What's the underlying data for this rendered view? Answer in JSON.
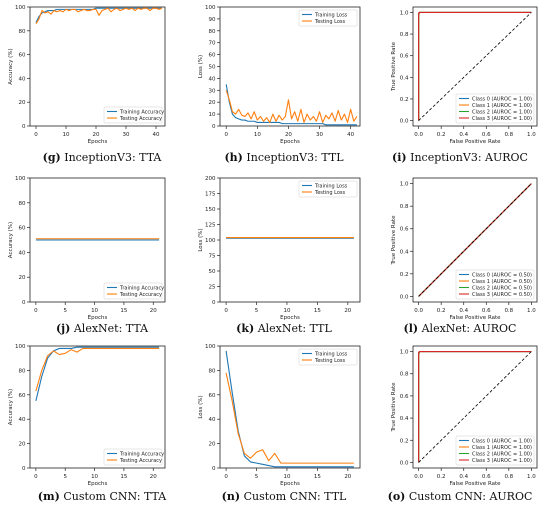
{
  "chart_data": [
    {
      "type": "line",
      "subfigure": "g",
      "model": "InceptionV3",
      "metric": "TTA",
      "xlabel": "Epochs",
      "ylabel": "Accuracy (%)",
      "xlim": [
        -2,
        43
      ],
      "ylim": [
        0,
        100
      ],
      "xticks": [
        0,
        10,
        20,
        30,
        40
      ],
      "yticks": [
        0,
        20,
        40,
        60,
        80,
        100
      ],
      "legend": "bottom-right",
      "series": [
        {
          "name": "Training Accuracy",
          "color": "#1f77b4",
          "x": [
            0,
            1,
            2,
            3,
            4,
            5,
            6,
            7,
            8,
            9,
            10,
            11,
            12,
            13,
            14,
            15,
            16,
            17,
            18,
            19,
            20,
            21,
            22,
            23,
            24,
            25,
            26,
            27,
            28,
            29,
            30,
            31,
            32,
            33,
            34,
            35,
            36,
            37,
            38,
            39,
            40,
            41,
            42
          ],
          "values": [
            87,
            92,
            95,
            96,
            97,
            97,
            97,
            98,
            98,
            98,
            98,
            98,
            98,
            98,
            98,
            98,
            98,
            98,
            98,
            98,
            99,
            99,
            99,
            99,
            99,
            99,
            99,
            99,
            99,
            99,
            99,
            99,
            99,
            99,
            99,
            99,
            99,
            99,
            99,
            99,
            99,
            99,
            99
          ]
        },
        {
          "name": "Testing Accuracy",
          "color": "#ff7f0e",
          "x": [
            0,
            1,
            2,
            3,
            4,
            5,
            6,
            7,
            8,
            9,
            10,
            11,
            12,
            13,
            14,
            15,
            16,
            17,
            18,
            19,
            20,
            21,
            22,
            23,
            24,
            25,
            26,
            27,
            28,
            29,
            30,
            31,
            32,
            33,
            34,
            35,
            36,
            37,
            38,
            39,
            40,
            41,
            42
          ],
          "values": [
            86,
            90,
            97,
            95,
            96,
            94,
            97,
            96,
            97,
            96,
            98,
            97,
            98,
            98,
            96,
            97,
            98,
            97,
            97,
            98,
            98,
            93,
            97,
            98,
            99,
            96,
            98,
            99,
            97,
            98,
            99,
            98,
            99,
            97,
            99,
            98,
            99,
            99,
            97,
            99,
            99,
            98,
            99
          ]
        }
      ]
    },
    {
      "type": "line",
      "subfigure": "h",
      "model": "InceptionV3",
      "metric": "TTL",
      "xlabel": "Epochs",
      "ylabel": "Loss (%)",
      "xlim": [
        -2,
        43
      ],
      "ylim": [
        0,
        100
      ],
      "xticks": [
        0,
        10,
        20,
        30,
        40
      ],
      "yticks": [
        0,
        10,
        20,
        30,
        40,
        50,
        60,
        70,
        80,
        90,
        100
      ],
      "legend": "top-right",
      "series": [
        {
          "name": "Training Loss",
          "color": "#1f77b4",
          "x": [
            0,
            1,
            2,
            3,
            4,
            5,
            6,
            7,
            8,
            9,
            10,
            11,
            12,
            13,
            14,
            15,
            16,
            17,
            18,
            19,
            20,
            21,
            22,
            23,
            24,
            25,
            26,
            27,
            28,
            29,
            30,
            31,
            32,
            33,
            34,
            35,
            36,
            37,
            38,
            39,
            40,
            41,
            42
          ],
          "values": [
            35,
            20,
            10,
            7,
            6,
            5,
            5,
            4,
            4,
            4,
            3,
            3,
            3,
            3,
            3,
            3,
            3,
            3,
            2,
            2,
            2,
            2,
            2,
            2,
            2,
            2,
            2,
            2,
            2,
            2,
            2,
            2,
            1,
            1,
            1,
            1,
            1,
            1,
            1,
            1,
            1,
            1,
            1
          ]
        },
        {
          "name": "Testing Loss",
          "color": "#ff7f0e",
          "x": [
            0,
            1,
            2,
            3,
            4,
            5,
            6,
            7,
            8,
            9,
            10,
            11,
            12,
            13,
            14,
            15,
            16,
            17,
            18,
            19,
            20,
            21,
            22,
            23,
            24,
            25,
            26,
            27,
            28,
            29,
            30,
            31,
            32,
            33,
            34,
            35,
            36,
            37,
            38,
            39,
            40,
            41,
            42
          ],
          "values": [
            30,
            22,
            12,
            10,
            14,
            9,
            8,
            11,
            6,
            12,
            5,
            8,
            4,
            7,
            3,
            10,
            4,
            9,
            5,
            8,
            22,
            6,
            12,
            4,
            14,
            3,
            10,
            5,
            8,
            4,
            12,
            3,
            9,
            6,
            11,
            4,
            13,
            5,
            10,
            3,
            14,
            4,
            8
          ]
        }
      ]
    },
    {
      "type": "line",
      "subfigure": "i",
      "model": "InceptionV3",
      "metric": "AUROC",
      "xlabel": "False Positive Rate",
      "ylabel": "True Positive Rate",
      "xlim": [
        -0.05,
        1.05
      ],
      "ylim": [
        -0.05,
        1.05
      ],
      "xticks": [
        0.0,
        0.2,
        0.4,
        0.6,
        0.8,
        1.0
      ],
      "yticks": [
        0.0,
        0.2,
        0.4,
        0.6,
        0.8,
        1.0
      ],
      "legend": "bottom-right",
      "series": [
        {
          "name": "Class 0 (AUROC = 1.00)",
          "color": "#1f77b4",
          "x": [
            0,
            0,
            0.008,
            1
          ],
          "values": [
            0,
            0.97,
            1,
            1
          ]
        },
        {
          "name": "Class 1 (AUROC = 1.00)",
          "color": "#ff7f0e",
          "x": [
            0,
            0,
            0.01,
            1
          ],
          "values": [
            0,
            0.98,
            1,
            1
          ]
        },
        {
          "name": "Class 2 (AUROC = 1.00)",
          "color": "#2ca02c",
          "x": [
            0,
            0,
            0.006,
            1
          ],
          "values": [
            0,
            0.99,
            1,
            1
          ]
        },
        {
          "name": "Class 3 (AUROC = 1.00)",
          "color": "#d62728",
          "x": [
            0,
            0,
            0.004,
            1
          ],
          "values": [
            0,
            0.99,
            1,
            1
          ]
        },
        {
          "name": "",
          "color": "#000000",
          "dashed": true,
          "x": [
            0,
            1
          ],
          "values": [
            0,
            1
          ]
        }
      ]
    },
    {
      "type": "line",
      "subfigure": "j",
      "model": "AlexNet",
      "metric": "TTA",
      "xlabel": "Epochs",
      "ylabel": "Accuracy (%)",
      "xlim": [
        -1,
        22
      ],
      "ylim": [
        0,
        100
      ],
      "xticks": [
        0,
        5,
        10,
        15,
        20
      ],
      "yticks": [
        0,
        20,
        40,
        60,
        80,
        100
      ],
      "legend": "bottom-right",
      "series": [
        {
          "name": "Training Accuracy",
          "color": "#1f77b4",
          "x": [
            0,
            21
          ],
          "values": [
            50,
            50
          ]
        },
        {
          "name": "Testing Accuracy",
          "color": "#ff7f0e",
          "x": [
            0,
            21
          ],
          "values": [
            51,
            51
          ]
        }
      ]
    },
    {
      "type": "line",
      "subfigure": "k",
      "model": "AlexNet",
      "metric": "TTL",
      "xlabel": "Epochs",
      "ylabel": "Loss (%)",
      "xlim": [
        -1,
        22
      ],
      "ylim": [
        0,
        200
      ],
      "xticks": [
        0,
        5,
        10,
        15,
        20
      ],
      "yticks": [
        0,
        25,
        50,
        75,
        100,
        125,
        150,
        175,
        200
      ],
      "legend": "top-right",
      "series": [
        {
          "name": "Training Loss",
          "color": "#1f77b4",
          "x": [
            0,
            21
          ],
          "values": [
            103,
            103
          ]
        },
        {
          "name": "Testing Loss",
          "color": "#ff7f0e",
          "x": [
            0,
            21
          ],
          "values": [
            104,
            104
          ]
        }
      ]
    },
    {
      "type": "line",
      "subfigure": "l",
      "model": "AlexNet",
      "metric": "AUROC",
      "xlabel": "False Positive Rate",
      "ylabel": "True Positive Rate",
      "xlim": [
        -0.05,
        1.05
      ],
      "ylim": [
        -0.05,
        1.05
      ],
      "xticks": [
        0.0,
        0.2,
        0.4,
        0.6,
        0.8,
        1.0
      ],
      "yticks": [
        0.0,
        0.2,
        0.4,
        0.6,
        0.8,
        1.0
      ],
      "legend": "bottom-right",
      "series": [
        {
          "name": "Class 0 (AUROC = 0.50)",
          "color": "#1f77b4",
          "x": [
            0,
            1
          ],
          "values": [
            0,
            1
          ]
        },
        {
          "name": "Class 1 (AUROC = 0.50)",
          "color": "#ff7f0e",
          "x": [
            0,
            1
          ],
          "values": [
            0,
            1
          ]
        },
        {
          "name": "Class 2 (AUROC = 0.50)",
          "color": "#2ca02c",
          "x": [
            0,
            1
          ],
          "values": [
            0,
            1
          ]
        },
        {
          "name": "Class 3 (AUROC = 0.50)",
          "color": "#d62728",
          "x": [
            0,
            1
          ],
          "values": [
            0,
            1
          ]
        },
        {
          "name": "",
          "color": "#000000",
          "dashed": true,
          "x": [
            0,
            1
          ],
          "values": [
            0,
            1
          ]
        }
      ]
    },
    {
      "type": "line",
      "subfigure": "m",
      "model": "Custom CNN",
      "metric": "TTA",
      "xlabel": "Epochs",
      "ylabel": "Accuracy (%)",
      "xlim": [
        -1,
        22
      ],
      "ylim": [
        0,
        100
      ],
      "xticks": [
        0,
        5,
        10,
        15,
        20
      ],
      "yticks": [
        0,
        20,
        40,
        60,
        80,
        100
      ],
      "legend": "bottom-right",
      "series": [
        {
          "name": "Training Accuracy",
          "color": "#1f77b4",
          "x": [
            0,
            1,
            2,
            3,
            4,
            5,
            6,
            7,
            8,
            9,
            10,
            11,
            12,
            13,
            14,
            15,
            16,
            17,
            18,
            19,
            20,
            21
          ],
          "values": [
            55,
            75,
            90,
            96,
            98,
            98,
            98,
            99,
            99,
            99,
            99,
            99,
            99,
            99,
            99,
            99,
            99,
            99,
            99,
            99,
            99,
            99
          ]
        },
        {
          "name": "Testing Accuracy",
          "color": "#ff7f0e",
          "x": [
            0,
            1,
            2,
            3,
            4,
            5,
            6,
            7,
            8,
            9,
            10,
            11,
            12,
            13,
            14,
            15,
            16,
            17,
            18,
            19,
            20,
            21
          ],
          "values": [
            63,
            80,
            92,
            96,
            93,
            94,
            97,
            95,
            98,
            98,
            98,
            98,
            98,
            98,
            98,
            98,
            98,
            98,
            98,
            98,
            98,
            98
          ]
        }
      ]
    },
    {
      "type": "line",
      "subfigure": "n",
      "model": "Custom CNN",
      "metric": "TTL",
      "xlabel": "Epochs",
      "ylabel": "Loss (%)",
      "xlim": [
        -1,
        22
      ],
      "ylim": [
        0,
        100
      ],
      "xticks": [
        0,
        5,
        10,
        15,
        20
      ],
      "yticks": [
        0,
        20,
        40,
        60,
        80,
        100
      ],
      "legend": "top-right",
      "series": [
        {
          "name": "Training Loss",
          "color": "#1f77b4",
          "x": [
            0,
            1,
            2,
            3,
            4,
            5,
            6,
            7,
            8,
            9,
            10,
            11,
            12,
            13,
            14,
            15,
            16,
            17,
            18,
            19,
            20,
            21
          ],
          "values": [
            96,
            62,
            30,
            10,
            5,
            4,
            3,
            2,
            1,
            1,
            1,
            1,
            1,
            1,
            1,
            1,
            1,
            1,
            1,
            1,
            1,
            1
          ]
        },
        {
          "name": "Testing Loss",
          "color": "#ff7f0e",
          "x": [
            0,
            1,
            2,
            3,
            4,
            5,
            6,
            7,
            8,
            9,
            10,
            11,
            12,
            13,
            14,
            15,
            16,
            17,
            18,
            19,
            20,
            21
          ],
          "values": [
            78,
            55,
            28,
            12,
            8,
            13,
            15,
            6,
            12,
            4,
            4,
            4,
            4,
            4,
            4,
            4,
            4,
            4,
            4,
            4,
            4,
            4
          ]
        }
      ]
    },
    {
      "type": "line",
      "subfigure": "o",
      "model": "Custom CNN",
      "metric": "AUROC",
      "xlabel": "False Positive Rate",
      "ylabel": "True Positive Rate",
      "xlim": [
        -0.05,
        1.05
      ],
      "ylim": [
        -0.05,
        1.05
      ],
      "xticks": [
        0.0,
        0.2,
        0.4,
        0.6,
        0.8,
        1.0
      ],
      "yticks": [
        0.0,
        0.2,
        0.4,
        0.6,
        0.8,
        1.0
      ],
      "legend": "bottom-right",
      "series": [
        {
          "name": "Class 0 (AUROC = 1.00)",
          "color": "#1f77b4",
          "x": [
            0,
            0,
            0.01,
            1
          ],
          "values": [
            0,
            0.97,
            1,
            1
          ]
        },
        {
          "name": "Class 1 (AUROC = 1.00)",
          "color": "#ff7f0e",
          "x": [
            0,
            0,
            0.012,
            1
          ],
          "values": [
            0,
            0.98,
            1,
            1
          ]
        },
        {
          "name": "Class 2 (AUROC = 1.00)",
          "color": "#2ca02c",
          "x": [
            0,
            0,
            0.008,
            1
          ],
          "values": [
            0,
            0.99,
            1,
            1
          ]
        },
        {
          "name": "Class 3 (AUROC = 1.00)",
          "color": "#d62728",
          "x": [
            0,
            0,
            0.006,
            1
          ],
          "values": [
            0,
            0.99,
            1,
            1
          ]
        },
        {
          "name": "",
          "color": "#000000",
          "dashed": true,
          "x": [
            0,
            1
          ],
          "values": [
            0,
            1
          ]
        }
      ]
    }
  ],
  "captions": [
    {
      "label": "(g)",
      "text": "InceptionV3: TTA"
    },
    {
      "label": "(h)",
      "text": "InceptionV3: TTL"
    },
    {
      "label": "(i)",
      "text": "InceptionV3: AUROC"
    },
    {
      "label": "(j)",
      "text": "AlexNet: TTA"
    },
    {
      "label": "(k)",
      "text": "AlexNet: TTL"
    },
    {
      "label": "(l)",
      "text": "AlexNet: AUROC"
    },
    {
      "label": "(m)",
      "text": "Custom CNN: TTA"
    },
    {
      "label": "(n)",
      "text": "Custom CNN: TTL"
    },
    {
      "label": "(o)",
      "text": "Custom CNN: AUROC"
    }
  ]
}
